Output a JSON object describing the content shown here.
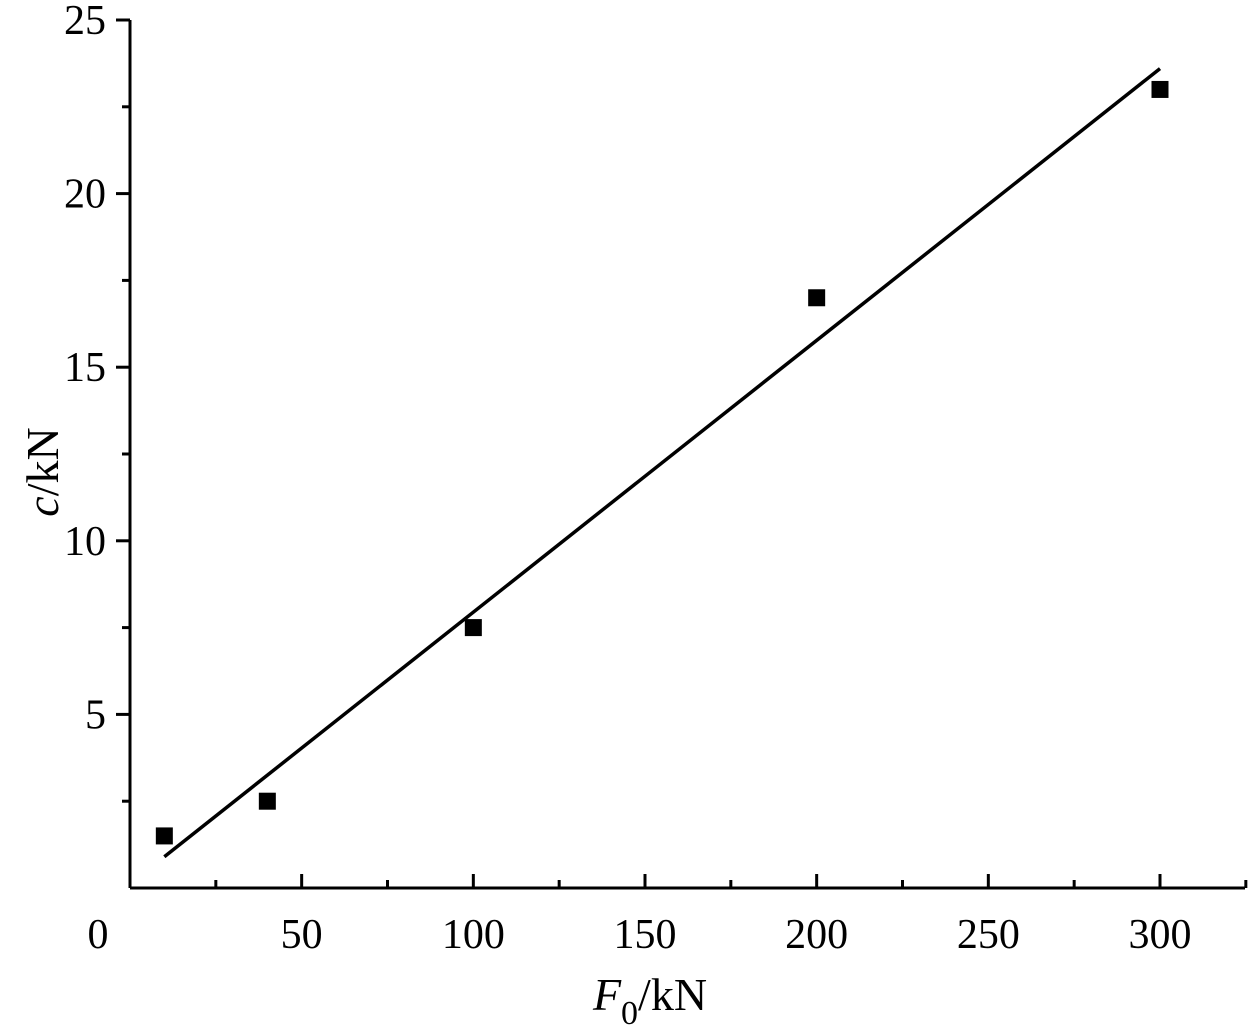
{
  "chart_data": {
    "type": "scatter",
    "xlabel": {
      "main": "F",
      "sub": "0",
      "unit": "/kN"
    },
    "ylabel": {
      "main": "c",
      "unit": "/kN"
    },
    "xlim": [
      0,
      325
    ],
    "ylim": [
      0,
      25
    ],
    "x_ticks": [
      0,
      50,
      100,
      150,
      200,
      250,
      300
    ],
    "x_tick_labels": [
      "0",
      "50",
      "100",
      "150",
      "200",
      "250",
      "300"
    ],
    "x_minor_ticks": [
      25,
      75,
      125,
      175,
      225,
      275,
      325
    ],
    "y_ticks": [
      5,
      10,
      15,
      20,
      25
    ],
    "y_tick_labels": [
      "5",
      "10",
      "15",
      "20",
      "25"
    ],
    "y_minor_ticks": [
      2.5,
      7.5,
      12.5,
      17.5,
      22.5
    ],
    "series": [
      {
        "type": "scatter",
        "marker": "square",
        "color": "#000000",
        "points": [
          {
            "x": 10,
            "y": 1.5
          },
          {
            "x": 40,
            "y": 2.5
          },
          {
            "x": 100,
            "y": 7.5
          },
          {
            "x": 200,
            "y": 17
          },
          {
            "x": 300,
            "y": 23
          }
        ]
      },
      {
        "type": "line",
        "color": "#000000",
        "points": [
          {
            "x": 10,
            "y": 0.9
          },
          {
            "x": 300,
            "y": 23.6
          }
        ]
      }
    ],
    "grid": false,
    "legend": "none"
  }
}
